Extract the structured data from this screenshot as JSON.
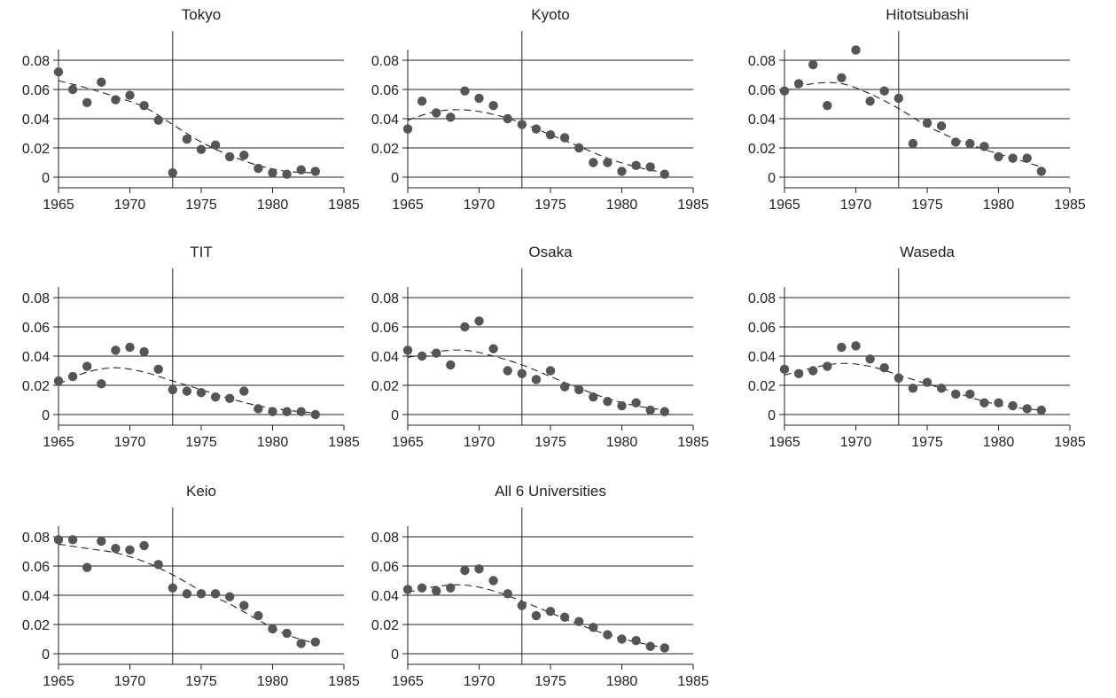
{
  "chart_data": [
    {
      "type": "scatter",
      "title": "Tokyo",
      "xlim": [
        1965,
        1985
      ],
      "ylim": [
        0,
        0.08
      ],
      "xticks": [
        1965,
        1970,
        1975,
        1980,
        1985
      ],
      "xtick_labels": [
        "1965",
        "1970",
        "1975",
        "1980",
        "1985"
      ],
      "yticks": [
        0,
        0.02,
        0.04,
        0.06,
        0.08
      ],
      "ytick_labels": [
        "0",
        "0.02",
        "0.04",
        "0.06",
        "0.08"
      ],
      "grid": "horizontal",
      "reference_line_x": 1973,
      "points": {
        "x": [
          1965,
          1966,
          1967,
          1968,
          1969,
          1970,
          1971,
          1972,
          1973,
          1974,
          1975,
          1976,
          1977,
          1978,
          1979,
          1980,
          1981,
          1982,
          1983
        ],
        "y": [
          0.072,
          0.06,
          0.051,
          0.065,
          0.053,
          0.056,
          0.049,
          0.039,
          0.003,
          0.026,
          0.019,
          0.022,
          0.014,
          0.015,
          0.006,
          0.003,
          0.002,
          0.005,
          0.004
        ]
      },
      "trend": {
        "x": [
          1965,
          1967,
          1969,
          1971,
          1973,
          1975,
          1977,
          1979,
          1981,
          1983
        ],
        "y": [
          0.066,
          0.061,
          0.055,
          0.048,
          0.036,
          0.024,
          0.015,
          0.008,
          0.004,
          0.003
        ]
      }
    },
    {
      "type": "scatter",
      "title": "Kyoto",
      "xlim": [
        1965,
        1985
      ],
      "ylim": [
        0,
        0.08
      ],
      "xticks": [
        1965,
        1970,
        1975,
        1980,
        1985
      ],
      "xtick_labels": [
        "1965",
        "1970",
        "1975",
        "1980",
        "1985"
      ],
      "yticks": [
        0,
        0.02,
        0.04,
        0.06,
        0.08
      ],
      "ytick_labels": [
        "0",
        "0.02",
        "0.04",
        "0.06",
        "0.08"
      ],
      "grid": "horizontal",
      "reference_line_x": 1973,
      "points": {
        "x": [
          1965,
          1966,
          1967,
          1968,
          1969,
          1970,
          1971,
          1972,
          1973,
          1974,
          1975,
          1976,
          1977,
          1978,
          1979,
          1980,
          1981,
          1982,
          1983
        ],
        "y": [
          0.033,
          0.052,
          0.044,
          0.041,
          0.059,
          0.054,
          0.049,
          0.04,
          0.036,
          0.033,
          0.029,
          0.027,
          0.02,
          0.01,
          0.01,
          0.004,
          0.008,
          0.007,
          0.002
        ]
      },
      "trend": {
        "x": [
          1965,
          1967,
          1969,
          1971,
          1973,
          1975,
          1977,
          1979,
          1981,
          1983
        ],
        "y": [
          0.039,
          0.045,
          0.046,
          0.043,
          0.037,
          0.029,
          0.021,
          0.013,
          0.007,
          0.003
        ]
      }
    },
    {
      "type": "scatter",
      "title": "Hitotsubashi",
      "xlim": [
        1965,
        1985
      ],
      "ylim": [
        0,
        0.08
      ],
      "xticks": [
        1965,
        1970,
        1975,
        1980,
        1985
      ],
      "xtick_labels": [
        "1965",
        "1970",
        "1975",
        "1980",
        "1985"
      ],
      "yticks": [
        0,
        0.02,
        0.04,
        0.06,
        0.08
      ],
      "ytick_labels": [
        "0",
        "0.02",
        "0.04",
        "0.06",
        "0.08"
      ],
      "grid": "horizontal",
      "reference_line_x": 1973,
      "points": {
        "x": [
          1965,
          1966,
          1967,
          1968,
          1969,
          1970,
          1971,
          1972,
          1973,
          1974,
          1975,
          1976,
          1977,
          1978,
          1979,
          1980,
          1981,
          1982,
          1983
        ],
        "y": [
          0.059,
          0.064,
          0.077,
          0.049,
          0.068,
          0.087,
          0.052,
          0.059,
          0.054,
          0.023,
          0.037,
          0.035,
          0.024,
          0.023,
          0.021,
          0.014,
          0.013,
          0.013,
          0.004
        ]
      },
      "trend": {
        "x": [
          1965,
          1967,
          1969,
          1971,
          1973,
          1975,
          1977,
          1979,
          1981,
          1983
        ],
        "y": [
          0.059,
          0.064,
          0.064,
          0.057,
          0.047,
          0.035,
          0.026,
          0.019,
          0.013,
          0.007
        ]
      }
    },
    {
      "type": "scatter",
      "title": "TIT",
      "xlim": [
        1965,
        1985
      ],
      "ylim": [
        0,
        0.08
      ],
      "xticks": [
        1965,
        1970,
        1975,
        1980,
        1985
      ],
      "xtick_labels": [
        "1965",
        "1970",
        "1975",
        "1980",
        "1985"
      ],
      "yticks": [
        0,
        0.02,
        0.04,
        0.06,
        0.08
      ],
      "ytick_labels": [
        "0",
        "0.02",
        "0.04",
        "0.06",
        "0.08"
      ],
      "grid": "horizontal",
      "reference_line_x": 1973,
      "points": {
        "x": [
          1965,
          1966,
          1967,
          1968,
          1969,
          1970,
          1971,
          1972,
          1973,
          1974,
          1975,
          1976,
          1977,
          1978,
          1979,
          1980,
          1981,
          1982,
          1983
        ],
        "y": [
          0.023,
          0.026,
          0.033,
          0.021,
          0.044,
          0.046,
          0.043,
          0.031,
          0.017,
          0.016,
          0.015,
          0.012,
          0.011,
          0.016,
          0.004,
          0.002,
          0.002,
          0.002,
          0.0
        ]
      },
      "trend": {
        "x": [
          1965,
          1967,
          1969,
          1971,
          1973,
          1975,
          1977,
          1979,
          1981,
          1983
        ],
        "y": [
          0.021,
          0.029,
          0.032,
          0.029,
          0.023,
          0.017,
          0.011,
          0.006,
          0.003,
          0.001
        ]
      }
    },
    {
      "type": "scatter",
      "title": "Osaka",
      "xlim": [
        1965,
        1985
      ],
      "ylim": [
        0,
        0.08
      ],
      "xticks": [
        1965,
        1970,
        1975,
        1980,
        1985
      ],
      "xtick_labels": [
        "1965",
        "1970",
        "1975",
        "1980",
        "1985"
      ],
      "yticks": [
        0,
        0.02,
        0.04,
        0.06,
        0.08
      ],
      "ytick_labels": [
        "0",
        "0.02",
        "0.04",
        "0.06",
        "0.08"
      ],
      "grid": "horizontal",
      "reference_line_x": 1973,
      "points": {
        "x": [
          1965,
          1966,
          1967,
          1968,
          1969,
          1970,
          1971,
          1972,
          1973,
          1974,
          1975,
          1976,
          1977,
          1978,
          1979,
          1980,
          1981,
          1982,
          1983
        ],
        "y": [
          0.044,
          0.04,
          0.042,
          0.034,
          0.06,
          0.064,
          0.045,
          0.03,
          0.028,
          0.024,
          0.03,
          0.019,
          0.017,
          0.012,
          0.009,
          0.006,
          0.008,
          0.003,
          0.002
        ]
      },
      "trend": {
        "x": [
          1965,
          1967,
          1969,
          1971,
          1973,
          1975,
          1977,
          1979,
          1981,
          1983
        ],
        "y": [
          0.039,
          0.043,
          0.044,
          0.04,
          0.034,
          0.026,
          0.018,
          0.011,
          0.006,
          0.003
        ]
      }
    },
    {
      "type": "scatter",
      "title": "Waseda",
      "xlim": [
        1965,
        1985
      ],
      "ylim": [
        0,
        0.08
      ],
      "xticks": [
        1965,
        1970,
        1975,
        1980,
        1985
      ],
      "xtick_labels": [
        "1965",
        "1970",
        "1975",
        "1980",
        "1985"
      ],
      "yticks": [
        0,
        0.02,
        0.04,
        0.06,
        0.08
      ],
      "ytick_labels": [
        "0",
        "0.02",
        "0.04",
        "0.06",
        "0.08"
      ],
      "grid": "horizontal",
      "reference_line_x": 1973,
      "points": {
        "x": [
          1965,
          1966,
          1967,
          1968,
          1969,
          1970,
          1971,
          1972,
          1973,
          1974,
          1975,
          1976,
          1977,
          1978,
          1979,
          1980,
          1981,
          1982,
          1983
        ],
        "y": [
          0.031,
          0.028,
          0.03,
          0.033,
          0.046,
          0.047,
          0.038,
          0.032,
          0.025,
          0.018,
          0.022,
          0.018,
          0.014,
          0.014,
          0.008,
          0.008,
          0.006,
          0.004,
          0.003
        ]
      },
      "trend": {
        "x": [
          1965,
          1967,
          1969,
          1971,
          1973,
          1975,
          1977,
          1979,
          1981,
          1983
        ],
        "y": [
          0.027,
          0.032,
          0.035,
          0.033,
          0.027,
          0.021,
          0.015,
          0.009,
          0.005,
          0.003
        ]
      }
    },
    {
      "type": "scatter",
      "title": "Keio",
      "xlim": [
        1965,
        1985
      ],
      "ylim": [
        0,
        0.08
      ],
      "xticks": [
        1965,
        1970,
        1975,
        1980,
        1985
      ],
      "xtick_labels": [
        "1965",
        "1970",
        "1975",
        "1980",
        "1985"
      ],
      "yticks": [
        0,
        0.02,
        0.04,
        0.06,
        0.08
      ],
      "ytick_labels": [
        "0",
        "0.02",
        "0.04",
        "0.06",
        "0.08"
      ],
      "grid": "horizontal",
      "reference_line_x": 1973,
      "points": {
        "x": [
          1965,
          1966,
          1967,
          1968,
          1969,
          1970,
          1971,
          1972,
          1973,
          1974,
          1975,
          1976,
          1977,
          1978,
          1979,
          1980,
          1981,
          1982,
          1983
        ],
        "y": [
          0.078,
          0.078,
          0.059,
          0.077,
          0.072,
          0.071,
          0.074,
          0.061,
          0.045,
          0.041,
          0.041,
          0.041,
          0.039,
          0.033,
          0.026,
          0.017,
          0.014,
          0.007,
          0.008
        ]
      },
      "trend": {
        "x": [
          1965,
          1967,
          1969,
          1971,
          1973,
          1975,
          1977,
          1979,
          1981,
          1983
        ],
        "y": [
          0.075,
          0.072,
          0.069,
          0.063,
          0.054,
          0.043,
          0.034,
          0.023,
          0.013,
          0.007
        ]
      }
    },
    {
      "type": "scatter",
      "title": "All 6 Universities",
      "xlim": [
        1965,
        1985
      ],
      "ylim": [
        0,
        0.08
      ],
      "xticks": [
        1965,
        1970,
        1975,
        1980,
        1985
      ],
      "xtick_labels": [
        "1965",
        "1970",
        "1975",
        "1980",
        "1985"
      ],
      "yticks": [
        0,
        0.02,
        0.04,
        0.06,
        0.08
      ],
      "ytick_labels": [
        "0",
        "0.02",
        "0.04",
        "0.06",
        "0.08"
      ],
      "grid": "horizontal",
      "reference_line_x": 1973,
      "points": {
        "x": [
          1965,
          1966,
          1967,
          1968,
          1969,
          1970,
          1971,
          1972,
          1973,
          1974,
          1975,
          1976,
          1977,
          1978,
          1979,
          1980,
          1981,
          1982,
          1983
        ],
        "y": [
          0.044,
          0.045,
          0.043,
          0.045,
          0.057,
          0.058,
          0.05,
          0.041,
          0.033,
          0.026,
          0.029,
          0.025,
          0.022,
          0.018,
          0.013,
          0.01,
          0.009,
          0.005,
          0.004
        ]
      },
      "trend": {
        "x": [
          1965,
          1967,
          1969,
          1971,
          1973,
          1975,
          1977,
          1979,
          1981,
          1983
        ],
        "y": [
          0.042,
          0.046,
          0.047,
          0.043,
          0.036,
          0.028,
          0.02,
          0.013,
          0.008,
          0.004
        ]
      }
    }
  ],
  "colors": {
    "marker": "#555555",
    "axis": "#222222",
    "grid": "#222222",
    "trend": "#222222"
  }
}
